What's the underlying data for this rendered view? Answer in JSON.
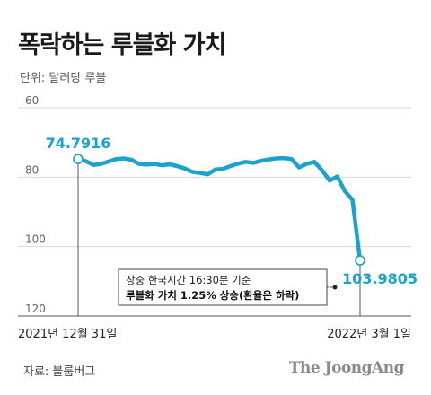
{
  "title": "폭락하는 루블화 가치",
  "unit": "단위: 달러당 루블",
  "source": "자료: 블룸버그",
  "brand": "The JoongAng",
  "colors": {
    "line": "#1ba3cc",
    "grid": "#d9d9d9",
    "text": "#222222",
    "axis": "#555555"
  },
  "chart_data": {
    "type": "line",
    "ylim": [
      60,
      120
    ],
    "y_inverted": true,
    "yticks": [
      60,
      80,
      100,
      120
    ],
    "xlabels": {
      "start": "2021년 12월 31일",
      "end": "2022년 3월 1일"
    },
    "start_label": "74.7916",
    "end_label": "103.9805",
    "annotation": {
      "line1": "장중 한국시간 16:30분 기준",
      "line2": "루블화 가치 1.25% 상승(환율은 하락)"
    },
    "values": [
      74.79,
      75.4,
      76.5,
      76.2,
      75.5,
      74.8,
      74.6,
      75.0,
      76.2,
      76.4,
      76.2,
      76.6,
      76.3,
      76.8,
      77.5,
      78.5,
      78.8,
      79.2,
      77.8,
      77.6,
      76.8,
      76.1,
      75.6,
      75.9,
      75.3,
      74.9,
      74.6,
      74.5,
      74.8,
      77.2,
      76.2,
      75.6,
      78.0,
      81.0,
      79.8,
      84.0,
      86.5,
      103.98
    ]
  }
}
